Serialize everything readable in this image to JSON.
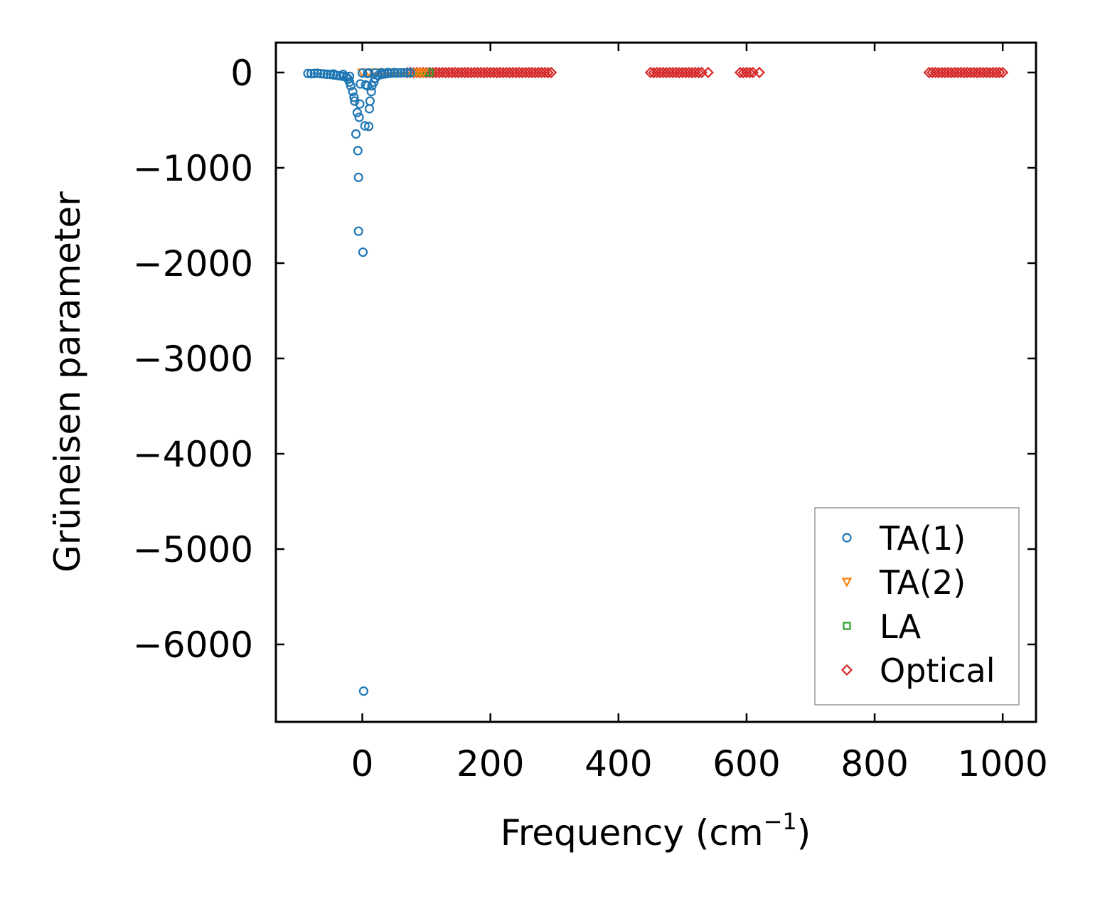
{
  "chart_data": {
    "type": "scatter",
    "title": "",
    "xlabel": "Frequency (cm",
    "xlabel_sup": "−1",
    "xlabel_end": ")",
    "ylabel": "Grüneisen parameter",
    "xlim": [
      -135,
      1052
    ],
    "ylim": [
      -6813,
      313
    ],
    "xticks": [
      0,
      200,
      400,
      600,
      800,
      1000
    ],
    "xtick_labels": [
      "0",
      "200",
      "400",
      "600",
      "800",
      "1000"
    ],
    "yticks": [
      0,
      -1000,
      -2000,
      -3000,
      -4000,
      -5000,
      -6000
    ],
    "ytick_labels": [
      "0",
      "−1000",
      "−2000",
      "−3000",
      "−4000",
      "−5000",
      "−6000"
    ],
    "grid": false,
    "legend_position": "lower-right",
    "series": [
      {
        "name": "TA(1)",
        "color": "#1f77b4",
        "marker": "circle",
        "points": [
          [
            -85,
            -10
          ],
          [
            -80,
            -12
          ],
          [
            -75,
            -10
          ],
          [
            -70,
            -8
          ],
          [
            -65,
            -12
          ],
          [
            -60,
            -15
          ],
          [
            -55,
            -18
          ],
          [
            -50,
            -20
          ],
          [
            -45,
            -25
          ],
          [
            -40,
            -30
          ],
          [
            -35,
            -35
          ],
          [
            -30,
            -40
          ],
          [
            -25,
            -50
          ],
          [
            -22,
            -70
          ],
          [
            -20,
            -100
          ],
          [
            -18,
            -140
          ],
          [
            -15,
            -200
          ],
          [
            -13,
            -260
          ],
          [
            -12,
            -300
          ],
          [
            -10,
            -645
          ],
          [
            -8,
            -420
          ],
          [
            -7,
            -820
          ],
          [
            -6,
            -1100
          ],
          [
            -6,
            -1665
          ],
          [
            -5,
            -470
          ],
          [
            -4,
            -330
          ],
          [
            -3,
            -120
          ],
          [
            1,
            -1885
          ],
          [
            2,
            -6490
          ],
          [
            4,
            -560
          ],
          [
            8,
            -10
          ],
          [
            10,
            -565
          ],
          [
            11,
            -380
          ],
          [
            12,
            -300
          ],
          [
            14,
            -200
          ],
          [
            15,
            -140
          ],
          [
            18,
            -100
          ],
          [
            20,
            -60
          ],
          [
            25,
            -30
          ],
          [
            30,
            -20
          ],
          [
            35,
            -15
          ],
          [
            40,
            -10
          ],
          [
            45,
            -8
          ],
          [
            50,
            -6
          ],
          [
            55,
            -5
          ],
          [
            60,
            -4
          ],
          [
            65,
            -3
          ],
          [
            70,
            -2
          ],
          [
            75,
            -2
          ],
          [
            5,
            -130
          ],
          [
            8,
            -140
          ],
          [
            -20,
            -40
          ],
          [
            -30,
            -20
          ],
          [
            -45,
            -15
          ],
          [
            0,
            -5
          ],
          [
            10,
            -5
          ],
          [
            20,
            -5
          ],
          [
            30,
            -2
          ],
          [
            40,
            0
          ],
          [
            50,
            0
          ]
        ]
      },
      {
        "name": "TA(2)",
        "color": "#ff7f0e",
        "marker": "triangle-down",
        "points": [
          [
            0,
            0
          ],
          [
            10,
            0
          ],
          [
            20,
            0
          ],
          [
            30,
            0
          ],
          [
            40,
            0
          ],
          [
            50,
            0
          ],
          [
            60,
            0
          ],
          [
            70,
            0
          ],
          [
            80,
            0
          ],
          [
            85,
            0
          ],
          [
            90,
            0
          ],
          [
            95,
            0
          ]
        ]
      },
      {
        "name": "LA",
        "color": "#2ca02c",
        "marker": "square",
        "points": [
          [
            20,
            0
          ],
          [
            40,
            0
          ],
          [
            60,
            0
          ],
          [
            80,
            0
          ],
          [
            95,
            0
          ],
          [
            100,
            0
          ],
          [
            105,
            0
          ]
        ]
      },
      {
        "name": "Optical",
        "color": "#d62728",
        "marker": "diamond",
        "points": [
          [
            70,
            -2
          ],
          [
            75,
            0
          ],
          [
            80,
            -3
          ],
          [
            85,
            0
          ],
          [
            90,
            -2
          ],
          [
            95,
            0
          ],
          [
            100,
            -1
          ],
          [
            105,
            0
          ],
          [
            110,
            -2
          ],
          [
            115,
            0
          ],
          [
            120,
            -1
          ],
          [
            125,
            0
          ],
          [
            130,
            -2
          ],
          [
            135,
            0
          ],
          [
            140,
            -1
          ],
          [
            145,
            0
          ],
          [
            150,
            -2
          ],
          [
            155,
            0
          ],
          [
            160,
            -1
          ],
          [
            165,
            0
          ],
          [
            170,
            -2
          ],
          [
            175,
            0
          ],
          [
            180,
            -1
          ],
          [
            185,
            0
          ],
          [
            190,
            -2
          ],
          [
            195,
            0
          ],
          [
            200,
            -1
          ],
          [
            205,
            0
          ],
          [
            210,
            -2
          ],
          [
            215,
            0
          ],
          [
            220,
            -1
          ],
          [
            225,
            0
          ],
          [
            230,
            -2
          ],
          [
            235,
            0
          ],
          [
            240,
            -1
          ],
          [
            245,
            0
          ],
          [
            250,
            -2
          ],
          [
            255,
            0
          ],
          [
            260,
            -1
          ],
          [
            265,
            0
          ],
          [
            270,
            -2
          ],
          [
            275,
            0
          ],
          [
            280,
            -1
          ],
          [
            285,
            0
          ],
          [
            290,
            -2
          ],
          [
            295,
            0
          ],
          [
            450,
            0
          ],
          [
            455,
            -2
          ],
          [
            460,
            0
          ],
          [
            465,
            -1
          ],
          [
            470,
            0
          ],
          [
            475,
            -2
          ],
          [
            480,
            0
          ],
          [
            485,
            -1
          ],
          [
            490,
            0
          ],
          [
            495,
            -2
          ],
          [
            500,
            0
          ],
          [
            505,
            -1
          ],
          [
            510,
            0
          ],
          [
            515,
            -2
          ],
          [
            520,
            0
          ],
          [
            525,
            -1
          ],
          [
            530,
            0
          ],
          [
            540,
            0
          ],
          [
            590,
            0
          ],
          [
            595,
            -2
          ],
          [
            600,
            0
          ],
          [
            605,
            -1
          ],
          [
            610,
            0
          ],
          [
            620,
            0
          ],
          [
            885,
            0
          ],
          [
            890,
            -1
          ],
          [
            895,
            0
          ],
          [
            900,
            -2
          ],
          [
            905,
            0
          ],
          [
            910,
            -1
          ],
          [
            915,
            0
          ],
          [
            920,
            -2
          ],
          [
            925,
            0
          ],
          [
            930,
            -1
          ],
          [
            935,
            0
          ],
          [
            940,
            -2
          ],
          [
            945,
            0
          ],
          [
            950,
            -1
          ],
          [
            955,
            0
          ],
          [
            960,
            -2
          ],
          [
            965,
            0
          ],
          [
            970,
            -1
          ],
          [
            975,
            0
          ],
          [
            980,
            -2
          ],
          [
            985,
            0
          ],
          [
            990,
            -1
          ],
          [
            995,
            0
          ],
          [
            1000,
            0
          ]
        ]
      }
    ]
  }
}
